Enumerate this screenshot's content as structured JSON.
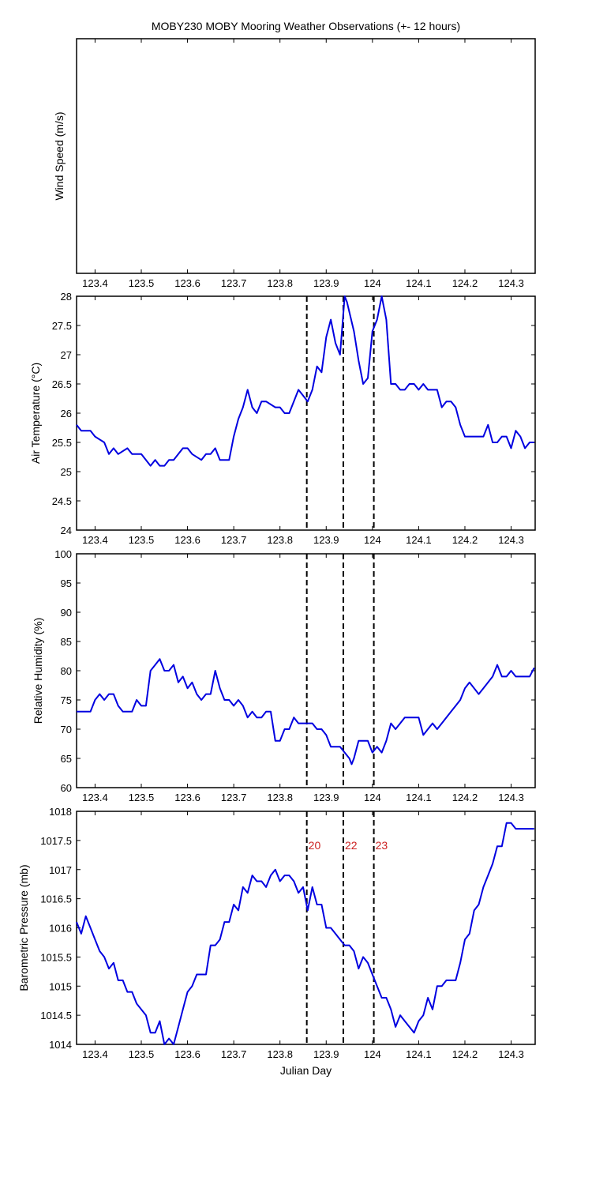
{
  "title": "MOBY230 MOBY Mooring Weather Observations (+- 12 hours)",
  "xlabel": "Julian Day",
  "colors": {
    "series": "#0000e0",
    "event_label": "#cc2222",
    "event_line": "#000000"
  },
  "x_ticks": [
    "123.4",
    "123.5",
    "123.6",
    "123.7",
    "123.8",
    "123.9",
    "124",
    "124.1",
    "124.2",
    "124.3"
  ],
  "chart_data": [
    {
      "type": "line",
      "ylabel": "Wind Speed (m/s)",
      "xlim": [
        123.36,
        124.352
      ],
      "ylim": null,
      "y_ticks": [],
      "series": [],
      "event_lines": false
    },
    {
      "type": "line",
      "ylabel": "Air Temperature (°C)",
      "xlim": [
        123.36,
        124.352
      ],
      "ylim": [
        24,
        28
      ],
      "y_ticks": [
        "24",
        "24.5",
        "25",
        "25.5",
        "26",
        "26.5",
        "27",
        "27.5",
        "28"
      ],
      "event_lines": true,
      "series": [
        {
          "x": [
            123.36,
            123.37,
            123.39,
            123.4,
            123.42,
            123.43,
            123.44,
            123.45,
            123.47,
            123.48,
            123.5,
            123.52,
            123.53,
            123.54,
            123.55,
            123.56,
            123.57,
            123.59,
            123.6,
            123.61,
            123.63,
            123.64,
            123.65,
            123.66,
            123.67,
            123.69,
            123.7,
            123.71,
            123.72,
            123.73,
            123.74,
            123.75,
            123.76,
            123.77,
            123.79,
            123.8,
            123.81,
            123.82,
            123.84,
            123.85,
            123.86,
            123.87,
            123.88,
            123.89,
            123.9,
            123.91,
            123.92,
            123.93,
            123.94,
            123.945,
            123.96,
            123.97,
            123.98,
            123.99,
            124.0,
            124.01,
            124.02,
            124.03,
            124.04,
            124.05,
            124.06,
            124.07,
            124.08,
            124.09,
            124.1,
            124.11,
            124.12,
            124.13,
            124.14,
            124.15,
            124.16,
            124.17,
            124.18,
            124.19,
            124.2,
            124.21,
            124.22,
            124.23,
            124.24,
            124.25,
            124.26,
            124.27,
            124.28,
            124.29,
            124.3,
            124.31,
            124.32,
            124.33,
            124.34,
            124.35
          ],
          "y": [
            25.8,
            25.7,
            25.7,
            25.6,
            25.5,
            25.3,
            25.4,
            25.3,
            25.4,
            25.3,
            25.3,
            25.1,
            25.2,
            25.1,
            25.1,
            25.2,
            25.2,
            25.4,
            25.4,
            25.3,
            25.2,
            25.3,
            25.3,
            25.4,
            25.2,
            25.2,
            25.6,
            25.9,
            26.1,
            26.4,
            26.1,
            26.0,
            26.2,
            26.2,
            26.1,
            26.1,
            26.0,
            26.0,
            26.4,
            26.3,
            26.2,
            26.4,
            26.8,
            26.7,
            27.3,
            27.6,
            27.2,
            27.0,
            28.0,
            27.9,
            27.4,
            26.9,
            26.5,
            26.6,
            27.4,
            27.6,
            28.0,
            27.6,
            26.5,
            26.5,
            26.4,
            26.4,
            26.5,
            26.5,
            26.4,
            26.5,
            26.4,
            26.4,
            26.4,
            26.1,
            26.2,
            26.2,
            26.1,
            25.8,
            25.6,
            25.6,
            25.6,
            25.6,
            25.6,
            25.8,
            25.5,
            25.5,
            25.6,
            25.6,
            25.4,
            25.7,
            25.6,
            25.4,
            25.5,
            25.5
          ]
        }
      ]
    },
    {
      "type": "line",
      "ylabel": "Relative Humidity (%)",
      "xlim": [
        123.36,
        124.352
      ],
      "ylim": [
        60,
        100
      ],
      "y_ticks": [
        "60",
        "65",
        "70",
        "75",
        "80",
        "85",
        "90",
        "95",
        "100"
      ],
      "event_lines": true,
      "series": [
        {
          "x": [
            123.36,
            123.38,
            123.39,
            123.4,
            123.41,
            123.42,
            123.43,
            123.44,
            123.45,
            123.46,
            123.48,
            123.49,
            123.5,
            123.51,
            123.52,
            123.53,
            123.54,
            123.55,
            123.56,
            123.57,
            123.58,
            123.59,
            123.6,
            123.61,
            123.62,
            123.63,
            123.64,
            123.65,
            123.66,
            123.67,
            123.68,
            123.69,
            123.7,
            123.71,
            123.72,
            123.73,
            123.74,
            123.75,
            123.76,
            123.77,
            123.78,
            123.79,
            123.8,
            123.81,
            123.82,
            123.83,
            123.84,
            123.85,
            123.86,
            123.87,
            123.88,
            123.89,
            123.9,
            123.91,
            123.92,
            123.93,
            123.94,
            123.95,
            123.955,
            123.96,
            123.97,
            123.98,
            123.99,
            124.0,
            124.01,
            124.02,
            124.03,
            124.04,
            124.05,
            124.06,
            124.07,
            124.08,
            124.09,
            124.1,
            124.11,
            124.12,
            124.13,
            124.14,
            124.15,
            124.16,
            124.17,
            124.18,
            124.19,
            124.2,
            124.21,
            124.22,
            124.23,
            124.24,
            124.25,
            124.26,
            124.27,
            124.28,
            124.29,
            124.3,
            124.31,
            124.32,
            124.33,
            124.34,
            124.35
          ],
          "y": [
            73,
            73,
            73,
            75,
            76,
            75,
            76,
            76,
            74,
            73,
            73,
            75,
            74,
            74,
            80,
            81,
            82,
            80,
            80,
            81,
            78,
            79,
            77,
            78,
            76,
            75,
            76,
            76,
            80,
            77,
            75,
            75,
            74,
            75,
            74,
            72,
            73,
            72,
            72,
            73,
            73,
            68,
            68,
            70,
            70,
            72,
            71,
            71,
            71,
            71,
            70,
            70,
            69,
            67,
            67,
            67,
            66,
            65,
            64,
            65,
            68,
            68,
            68,
            66,
            67,
            66,
            68,
            71,
            70,
            71,
            72,
            72,
            72,
            72,
            69,
            70,
            71,
            70,
            71,
            72,
            73,
            74,
            75,
            77,
            78,
            77,
            76,
            77,
            78,
            79,
            81,
            79,
            79,
            80,
            79,
            79,
            79,
            79,
            80.5
          ]
        }
      ]
    },
    {
      "type": "line",
      "ylabel": "Barometric Pressure (mb)",
      "xlim": [
        123.36,
        124.352
      ],
      "ylim": [
        1014,
        1018
      ],
      "y_ticks": [
        "1014",
        "1014.5",
        "1015",
        "1015.5",
        "1016",
        "1016.5",
        "1017",
        "1017.5",
        "1018"
      ],
      "event_lines": true,
      "event_labels": [
        "20",
        "22",
        "23"
      ],
      "series": [
        {
          "x": [
            123.36,
            123.37,
            123.38,
            123.39,
            123.4,
            123.41,
            123.42,
            123.43,
            123.44,
            123.45,
            123.46,
            123.47,
            123.48,
            123.49,
            123.5,
            123.51,
            123.52,
            123.53,
            123.54,
            123.55,
            123.56,
            123.565,
            123.57,
            123.58,
            123.59,
            123.6,
            123.61,
            123.62,
            123.63,
            123.64,
            123.65,
            123.66,
            123.67,
            123.68,
            123.69,
            123.7,
            123.71,
            123.72,
            123.73,
            123.74,
            123.75,
            123.76,
            123.77,
            123.78,
            123.79,
            123.8,
            123.81,
            123.82,
            123.83,
            123.84,
            123.85,
            123.86,
            123.87,
            123.88,
            123.89,
            123.9,
            123.91,
            123.92,
            123.93,
            123.94,
            123.95,
            123.96,
            123.97,
            123.98,
            123.99,
            124.0,
            124.01,
            124.02,
            124.03,
            124.04,
            124.05,
            124.06,
            124.07,
            124.08,
            124.09,
            124.1,
            124.11,
            124.12,
            124.13,
            124.14,
            124.15,
            124.16,
            124.17,
            124.18,
            124.19,
            124.2,
            124.21,
            124.22,
            124.23,
            124.24,
            124.25,
            124.26,
            124.27,
            124.28,
            124.29,
            124.3,
            124.31,
            124.32,
            124.33,
            124.34,
            124.35
          ],
          "y": [
            1016.1,
            1015.9,
            1016.2,
            1016.0,
            1015.8,
            1015.6,
            1015.5,
            1015.3,
            1015.4,
            1015.1,
            1015.1,
            1014.9,
            1014.9,
            1014.7,
            1014.6,
            1014.5,
            1014.2,
            1014.2,
            1014.4,
            1014.0,
            1014.1,
            1014.05,
            1014.0,
            1014.3,
            1014.6,
            1014.9,
            1015.0,
            1015.2,
            1015.2,
            1015.2,
            1015.7,
            1015.7,
            1015.8,
            1016.1,
            1016.1,
            1016.4,
            1016.3,
            1016.7,
            1016.6,
            1016.9,
            1016.8,
            1016.8,
            1016.7,
            1016.9,
            1017.0,
            1016.8,
            1016.9,
            1016.9,
            1016.8,
            1016.6,
            1016.7,
            1016.3,
            1016.7,
            1016.4,
            1016.4,
            1016.0,
            1016.0,
            1015.9,
            1015.8,
            1015.7,
            1015.7,
            1015.6,
            1015.3,
            1015.5,
            1015.4,
            1015.2,
            1015.0,
            1014.8,
            1014.8,
            1014.6,
            1014.3,
            1014.5,
            1014.4,
            1014.3,
            1014.2,
            1014.4,
            1014.5,
            1014.8,
            1014.6,
            1015.0,
            1015.0,
            1015.1,
            1015.1,
            1015.1,
            1015.4,
            1015.8,
            1015.9,
            1016.3,
            1016.4,
            1016.7,
            1016.9,
            1017.1,
            1017.4,
            1017.4,
            1017.8,
            1017.8,
            1017.7,
            1017.7,
            1017.7,
            1017.7,
            1017.7
          ]
        }
      ]
    }
  ],
  "event_x": [
    123.858,
    123.937,
    124.003
  ]
}
